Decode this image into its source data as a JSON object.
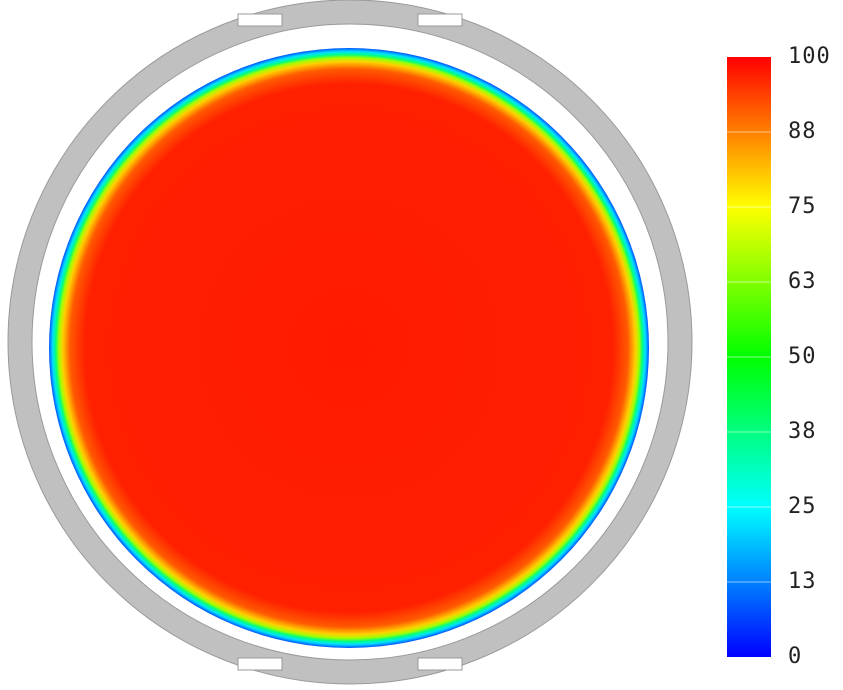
{
  "chart_data": {
    "type": "heatmap",
    "title": "",
    "xlabel": "",
    "ylabel": "",
    "colorbar": {
      "min": 0,
      "max": 100,
      "ticks": [
        "100",
        "88",
        "75",
        "63",
        "50",
        "38",
        "25",
        "13",
        "0"
      ],
      "colormap": [
        "#0000ff",
        "#0080ff",
        "#00ffff",
        "#00ff80",
        "#00ff00",
        "#80ff00",
        "#ffff00",
        "#ff8000",
        "#ff0000"
      ]
    },
    "field": {
      "shape": "circular",
      "interior_value": 97,
      "edge_value": 18,
      "background_ring_color": "#bdbdbd"
    }
  }
}
